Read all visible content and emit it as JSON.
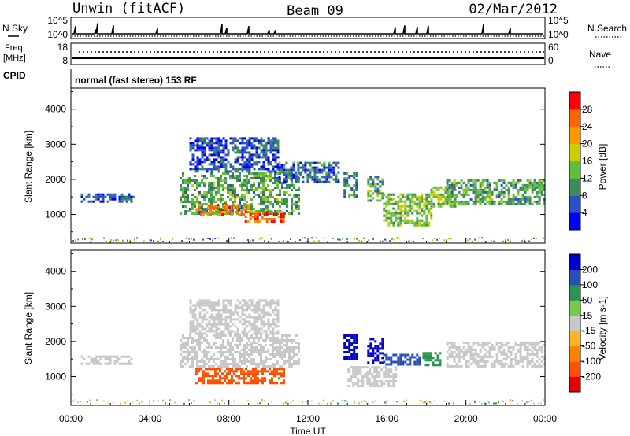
{
  "header": {
    "station": "Unwin (fitACF)",
    "beam": "Beam 09",
    "date": "02/Mar/2012"
  },
  "top_panels": {
    "nsky_label": "N.Sky",
    "nsky_ticks": [
      "10^5",
      "10^0"
    ],
    "nsearch_label": "N.Search",
    "nsearch_ticks": [
      "10^5",
      "10^0"
    ],
    "freq_label_1": "Freq.",
    "freq_label_2": "[MHz]",
    "freq_ticks": [
      "18",
      "8"
    ],
    "nave_label": "Nave",
    "nave_ticks": [
      "60",
      "0"
    ],
    "cpid_label": "CPID",
    "cpid_text": "normal (fast stereo) 153 RF"
  },
  "colors": {
    "power_scale": [
      "#0000ff",
      "#2c50c8",
      "#3c8c5a",
      "#5fbf3c",
      "#cccc00",
      "#ff9900",
      "#ff6600",
      "#ff0000"
    ],
    "velocity_scale": [
      "#0000c8",
      "#2850b4",
      "#289650",
      "#78c850",
      "#c8c8c8",
      "#ffb428",
      "#ff8200",
      "#ff5000",
      "#e60000"
    ]
  },
  "chart_data": [
    {
      "type": "heatmap",
      "title": "",
      "ylabel": "Slant Range [km]",
      "xlabel": "",
      "ylim": [
        180,
        4600
      ],
      "yticks": [
        "4000",
        "3000",
        "2000",
        "1000"
      ],
      "xlim_hours": [
        0,
        24
      ],
      "colorbar_label": "Power [dB]",
      "colorbar_ticks": [
        "28",
        "24",
        "20",
        "16",
        "12",
        "8",
        "4"
      ],
      "colorbar_range": [
        0,
        32
      ],
      "echo_regions": [
        {
          "t_start": 0.5,
          "t_end": 3.2,
          "r_min": 1350,
          "r_max": 1600,
          "level": 6
        },
        {
          "t_start": 5.5,
          "t_end": 11.5,
          "r_min": 1000,
          "r_max": 2200,
          "level": 12
        },
        {
          "t_start": 6.3,
          "t_end": 9.0,
          "r_min": 1000,
          "r_max": 1300,
          "level": 24
        },
        {
          "t_start": 8.8,
          "t_end": 10.8,
          "r_min": 800,
          "r_max": 1100,
          "level": 26
        },
        {
          "t_start": 6.0,
          "t_end": 10.5,
          "r_min": 2200,
          "r_max": 3200,
          "level": 6
        },
        {
          "t_start": 10.5,
          "t_end": 13.5,
          "r_min": 1900,
          "r_max": 2500,
          "level": 8
        },
        {
          "t_start": 13.8,
          "t_end": 14.5,
          "r_min": 1500,
          "r_max": 2200,
          "level": 10
        },
        {
          "t_start": 15.0,
          "t_end": 15.8,
          "r_min": 1400,
          "r_max": 2100,
          "level": 12
        },
        {
          "t_start": 15.8,
          "t_end": 18.2,
          "r_min": 700,
          "r_max": 1600,
          "level": 14
        },
        {
          "t_start": 18.2,
          "t_end": 19.5,
          "r_min": 1200,
          "r_max": 1800,
          "level": 14
        },
        {
          "t_start": 19.0,
          "t_end": 24.0,
          "r_min": 1300,
          "r_max": 2000,
          "level": 12
        }
      ]
    },
    {
      "type": "heatmap",
      "title": "",
      "ylabel": "Slant Range [km]",
      "xlabel": "Time UT",
      "ylim": [
        180,
        4600
      ],
      "yticks": [
        "4000",
        "3000",
        "2000",
        "1000"
      ],
      "xticks": [
        "00:00",
        "04:00",
        "08:00",
        "12:00",
        "16:00",
        "20:00",
        "00:00"
      ],
      "xlim_hours": [
        0,
        24
      ],
      "colorbar_label": "Velocity [m s-1]",
      "colorbar_ticks": [
        "200",
        "100",
        "50",
        "15",
        "-15",
        "-50",
        "-100",
        "-200"
      ],
      "echo_regions": [
        {
          "t_start": 0.5,
          "t_end": 3.2,
          "r_min": 1350,
          "r_max": 1600,
          "velocity": 0
        },
        {
          "t_start": 5.5,
          "t_end": 11.5,
          "r_min": 1300,
          "r_max": 2200,
          "velocity": 0
        },
        {
          "t_start": 6.3,
          "t_end": 10.8,
          "r_min": 800,
          "r_max": 1250,
          "velocity": -100
        },
        {
          "t_start": 6.0,
          "t_end": 10.5,
          "r_min": 2200,
          "r_max": 3200,
          "velocity": 0
        },
        {
          "t_start": 13.8,
          "t_end": 14.5,
          "r_min": 1500,
          "r_max": 2200,
          "velocity": 200
        },
        {
          "t_start": 15.0,
          "t_end": 15.8,
          "r_min": 1400,
          "r_max": 2100,
          "velocity": 200
        },
        {
          "t_start": 15.8,
          "t_end": 17.6,
          "r_min": 1350,
          "r_max": 1650,
          "velocity": 100
        },
        {
          "t_start": 14.0,
          "t_end": 16.5,
          "r_min": 700,
          "r_max": 1300,
          "velocity": 0
        },
        {
          "t_start": 17.8,
          "t_end": 18.7,
          "r_min": 1300,
          "r_max": 1700,
          "velocity": 50
        },
        {
          "t_start": 19.0,
          "t_end": 24.0,
          "r_min": 1300,
          "r_max": 2000,
          "velocity": 0
        }
      ]
    }
  ]
}
